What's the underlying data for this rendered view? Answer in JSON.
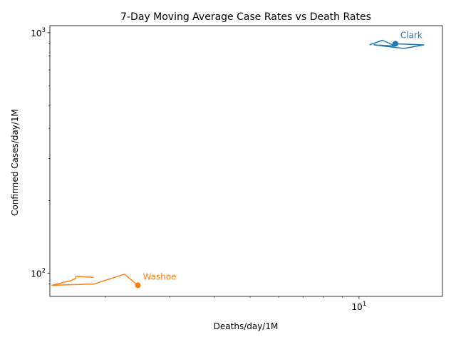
{
  "chart_data": {
    "type": "line",
    "title": "7-Day Moving Average Case Rates vs Death Rates",
    "xlabel": "Deaths/day/1M",
    "ylabel": "Confirmed Cases/day/1M",
    "x_scale": "log",
    "y_scale": "log",
    "xlim": [
      1.4,
      17.0
    ],
    "ylim": [
      80,
      1070
    ],
    "x_major_ticks": [
      {
        "value": 10,
        "label": "10"
      }
    ],
    "y_major_ticks": [
      {
        "value": 100,
        "label": "100"
      },
      {
        "value": 1000,
        "label": "1000"
      }
    ],
    "x_minor_ticks": [
      2,
      3,
      4,
      5,
      6,
      7,
      8,
      9
    ],
    "y_minor_ticks": [
      90,
      200,
      300,
      400,
      500,
      600,
      700,
      800,
      900
    ],
    "grid": false,
    "legend": "none",
    "series": [
      {
        "name": "Clark",
        "color": "#1f77b4",
        "x": [
          10.7,
          11.6,
          12.6,
          11.0,
          13.3,
          15.1,
          12.6
        ],
        "y": [
          890,
          930,
          880,
          890,
          860,
          890,
          900
        ],
        "end_marker": true
      },
      {
        "name": "Washoe",
        "color": "#ff7f0e",
        "x": [
          1.85,
          1.65,
          1.65,
          1.6,
          1.42,
          1.85,
          2.25,
          2.45
        ],
        "y": [
          96,
          97,
          95,
          93,
          89,
          90,
          99,
          89
        ],
        "end_marker": true
      }
    ]
  }
}
